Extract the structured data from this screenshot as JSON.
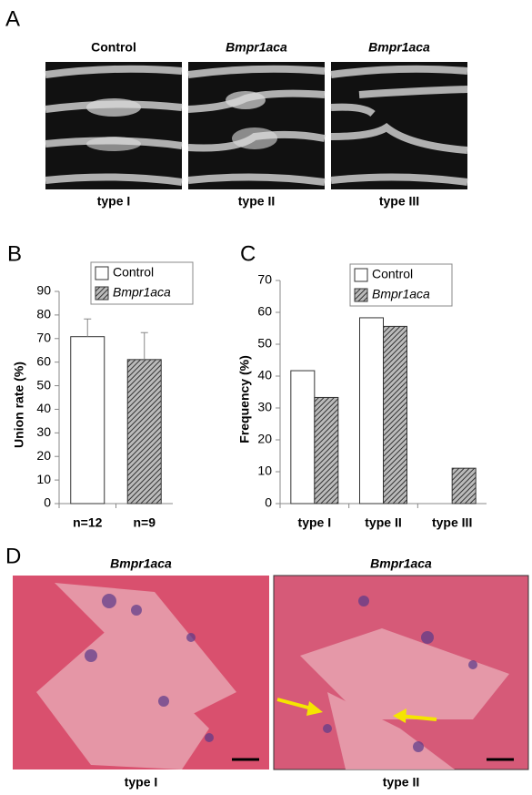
{
  "panel_a": {
    "letter": "A",
    "titles": [
      "Control",
      "Bmpr1aca",
      "Bmpr1aca"
    ],
    "captions": [
      "type I",
      "type II",
      "type III"
    ]
  },
  "chart_data": [
    {
      "type": "bar",
      "letter": "B",
      "y_label": "Union rate (%)",
      "categories": [
        "n=12",
        "n=9"
      ],
      "series": [
        {
          "name": "Control",
          "color": "#ffffff",
          "values": [
            70.8,
            null
          ],
          "errors": [
            7.5,
            null
          ]
        },
        {
          "name": "Bmpr1aca",
          "color": "hatch",
          "values": [
            null,
            61.1
          ],
          "errors": [
            null,
            11.4
          ]
        }
      ],
      "ylim": [
        0,
        90
      ],
      "yticks": [
        0,
        10,
        20,
        30,
        40,
        50,
        60,
        70,
        80,
        90
      ]
    },
    {
      "type": "bar",
      "letter": "C",
      "y_label": "Frequency (%)",
      "categories": [
        "type I",
        "type II",
        "type III"
      ],
      "series": [
        {
          "name": "Control",
          "color": "#ffffff",
          "values": [
            41.7,
            58.3,
            0
          ]
        },
        {
          "name": "Bmpr1aca",
          "color": "hatch",
          "values": [
            33.3,
            55.6,
            11.1
          ]
        }
      ],
      "ylim": [
        0,
        70
      ],
      "yticks": [
        0,
        10,
        20,
        30,
        40,
        50,
        60,
        70
      ]
    }
  ],
  "panel_d": {
    "letter": "D",
    "titles": [
      "Bmpr1aca",
      "Bmpr1aca"
    ],
    "captions": [
      "type I",
      "type II"
    ]
  }
}
